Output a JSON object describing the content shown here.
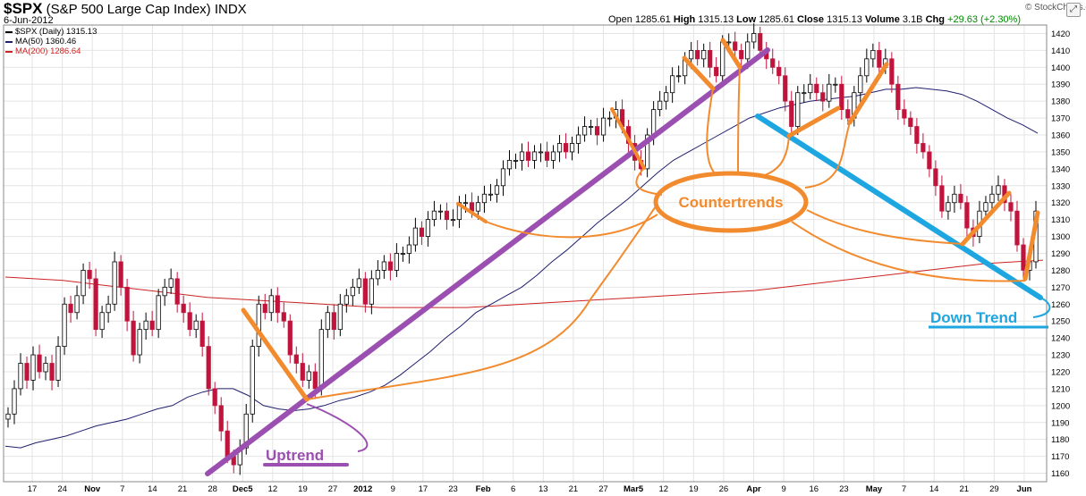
{
  "header": {
    "symbol": "$SPX",
    "name": "(S&P 500 Large Cap Index)",
    "exchange": "INDX",
    "date": "6-Jun-2012",
    "brand": "© StockCharts.com",
    "open_label": "Open",
    "open": "1285.61",
    "high_label": "High",
    "high": "1315.13",
    "low_label": "Low",
    "low": "1285.61",
    "close_label": "Close",
    "close": "1315.13",
    "volume_label": "Volume",
    "volume": "3.1B",
    "chg_label": "Chg",
    "chg": "+29.63 (+2.30%)"
  },
  "legend": [
    {
      "label": "$SPX (Daily) 1315.13",
      "color": "#000000"
    },
    {
      "label": "MA(50) 1360.46",
      "color": "#1f1f6e"
    },
    {
      "label": "MA(200) 1286.64",
      "color": "#cc2222"
    }
  ],
  "annotations": {
    "countertrends": "Countertrends",
    "uptrend": "Uptrend",
    "downtrend": "Down Trend"
  },
  "colors": {
    "up_candle": "#ffffff",
    "down_candle": "#c0143c",
    "ma50": "#1f1f6e",
    "ma200": "#cc2222",
    "uptrend": "#9b4fb0",
    "downtrend": "#1ea6e0",
    "countertrend": "#f28a2e",
    "grid": "#e4e4e4"
  },
  "icons": {
    "expand": "expand-icon"
  },
  "expand_glyph": "⤢",
  "chart_data": {
    "type": "candlestick",
    "title": "$SPX (S&P 500 Large Cap Index) INDX",
    "ylim": [
      1155,
      1425
    ],
    "yticks": [
      1160,
      1170,
      1180,
      1190,
      1200,
      1210,
      1220,
      1230,
      1240,
      1250,
      1260,
      1270,
      1280,
      1290,
      1300,
      1310,
      1320,
      1330,
      1340,
      1350,
      1360,
      1370,
      1380,
      1390,
      1400,
      1410,
      1420
    ],
    "xtick_labels": [
      "17",
      "24",
      "Nov",
      "7",
      "14",
      "21",
      "28",
      "Dec5",
      "12",
      "19",
      "27",
      "2012",
      "9",
      "17",
      "23",
      "Feb",
      "6",
      "13",
      "21",
      "27",
      "Mar5",
      "12",
      "19",
      "26",
      "Apr",
      "9",
      "16",
      "23",
      "May",
      "7",
      "14",
      "21",
      "29",
      "Jun"
    ],
    "grid": true,
    "series": [
      {
        "name": "$SPX (Daily)",
        "values": [
          1195,
          1210,
          1225,
          1215,
          1230,
          1220,
          1225,
          1215,
          1235,
          1260,
          1255,
          1265,
          1280,
          1275,
          1245,
          1255,
          1260,
          1285,
          1270,
          1250,
          1230,
          1245,
          1250,
          1245,
          1265,
          1270,
          1275,
          1260,
          1255,
          1245,
          1250,
          1235,
          1210,
          1200,
          1185,
          1170,
          1165,
          1175,
          1195,
          1235,
          1260,
          1255,
          1265,
          1255,
          1250,
          1230,
          1225,
          1215,
          1220,
          1210,
          1245,
          1255,
          1245,
          1260,
          1265,
          1270,
          1275,
          1260,
          1275,
          1280,
          1285,
          1280,
          1290,
          1290,
          1295,
          1305,
          1300,
          1310,
          1315,
          1315,
          1310,
          1310,
          1320,
          1320,
          1315,
          1320,
          1325,
          1325,
          1330,
          1340,
          1345,
          1345,
          1350,
          1345,
          1350,
          1350,
          1345,
          1350,
          1355,
          1350,
          1355,
          1360,
          1365,
          1365,
          1360,
          1370,
          1370,
          1375,
          1365,
          1355,
          1345,
          1340,
          1360,
          1375,
          1380,
          1385,
          1395,
          1395,
          1405,
          1410,
          1405,
          1410,
          1400,
          1395,
          1415,
          1415,
          1410,
          1405,
          1415,
          1420,
          1410,
          1405,
          1400,
          1395,
          1380,
          1365,
          1385,
          1385,
          1390,
          1385,
          1380,
          1390,
          1390,
          1375,
          1370,
          1385,
          1395,
          1405,
          1410,
          1400,
          1405,
          1390,
          1375,
          1370,
          1365,
          1355,
          1350,
          1340,
          1330,
          1315,
          1320,
          1325,
          1320,
          1305,
          1300,
          1315,
          1320,
          1325,
          1330,
          1320,
          1315,
          1295,
          1280,
          1285,
          1315
        ]
      },
      {
        "name": "MA(50)",
        "values": [
          1176,
          1175,
          1178,
          1180,
          1182,
          1185,
          1188,
          1190,
          1192,
          1195,
          1198,
          1200,
          1205,
          1208,
          1210,
          1210,
          1206,
          1200,
          1198,
          1197,
          1198,
          1200,
          1203,
          1205,
          1208,
          1212,
          1218,
          1225,
          1232,
          1240,
          1247,
          1255,
          1260,
          1265,
          1270,
          1277,
          1285,
          1292,
          1300,
          1308,
          1315,
          1322,
          1330,
          1338,
          1345,
          1350,
          1355,
          1360,
          1365,
          1370,
          1373,
          1376,
          1378,
          1380,
          1381,
          1382,
          1383,
          1385,
          1387,
          1387,
          1388,
          1387,
          1386,
          1384,
          1380,
          1375,
          1370,
          1366,
          1361
        ]
      },
      {
        "name": "MA(200)",
        "values": [
          1276,
          1275,
          1274,
          1272,
          1270,
          1268,
          1266,
          1264,
          1263,
          1262,
          1261,
          1260,
          1259,
          1258,
          1258,
          1258,
          1258,
          1259,
          1260,
          1261,
          1262,
          1263,
          1264,
          1265,
          1266,
          1267,
          1268,
          1270,
          1272,
          1274,
          1276,
          1278,
          1280,
          1282,
          1284,
          1285,
          1286
        ]
      }
    ]
  }
}
